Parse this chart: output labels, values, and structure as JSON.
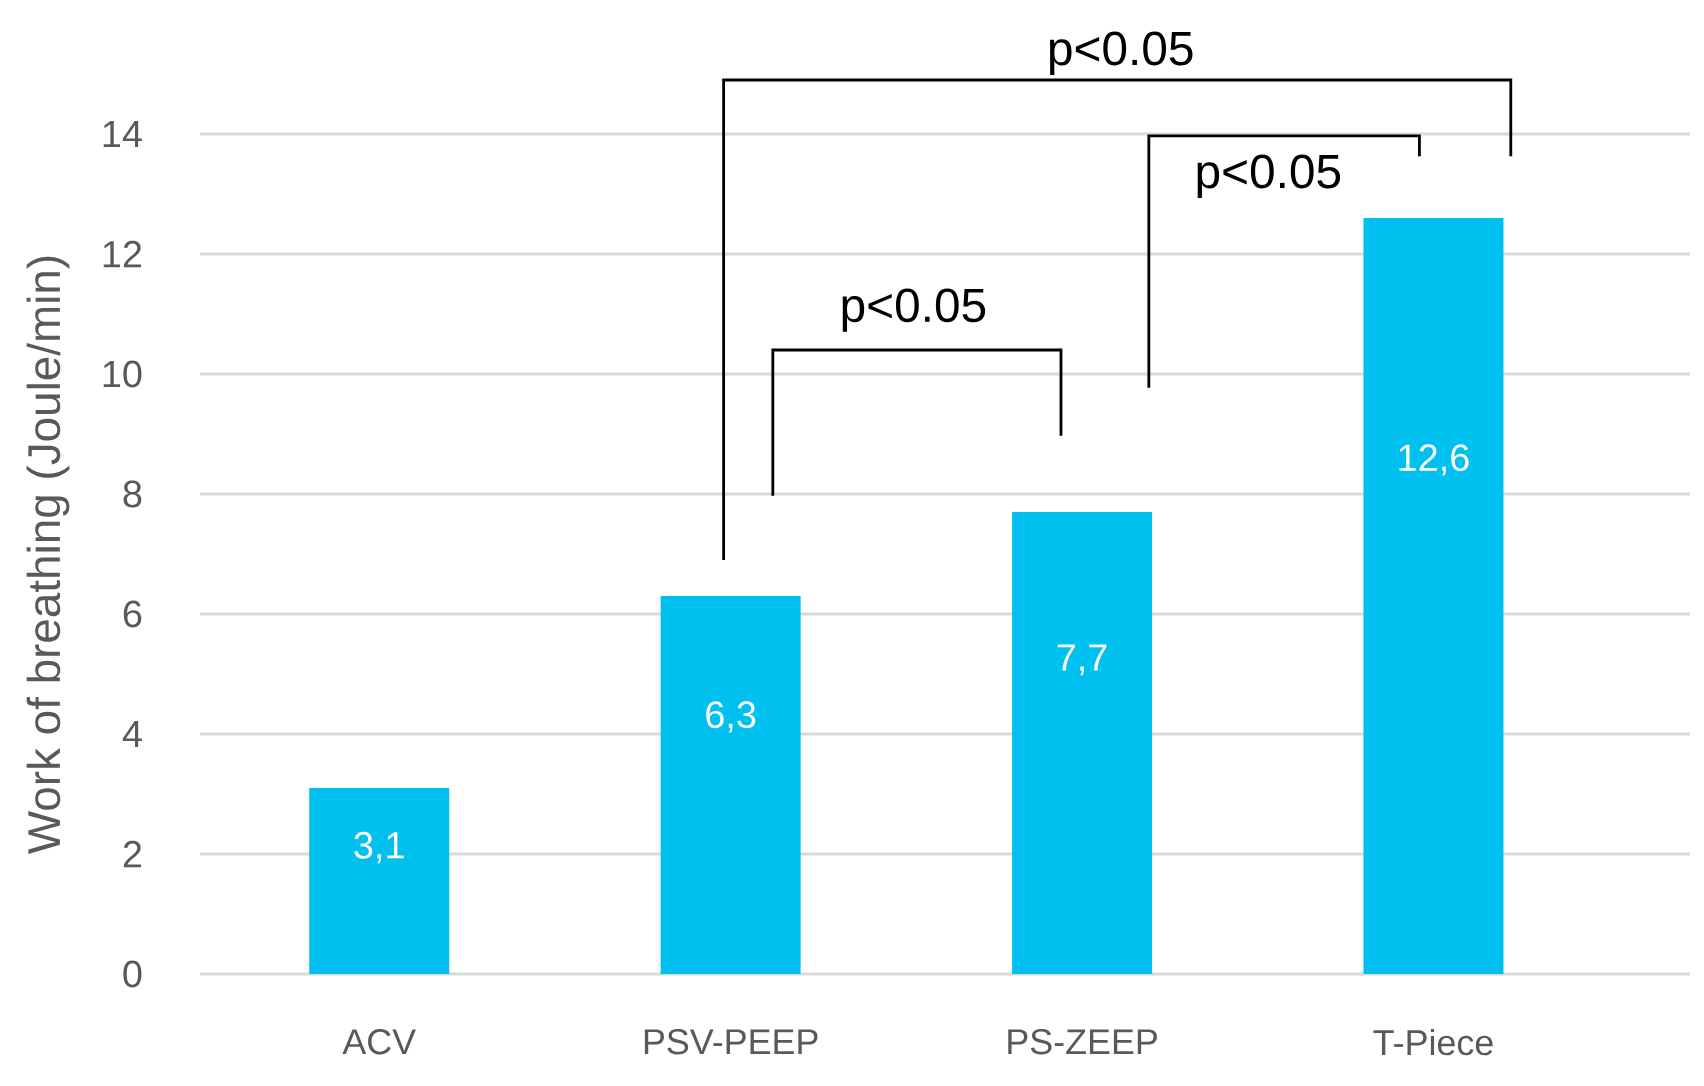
{
  "chart_data": {
    "type": "bar",
    "ylabel": "Work of breathing (Joule/min)",
    "categories": [
      "ACV",
      "PSV-PEEP",
      "PS-ZEEP",
      "T-Piece"
    ],
    "values": [
      3.1,
      6.3,
      7.7,
      12.6
    ],
    "value_labels": [
      "3,1",
      "6,3",
      "7,7",
      "12,6"
    ],
    "color": "#00c0ef",
    "ylim": [
      0,
      14
    ],
    "yticks": [
      0,
      2,
      4,
      6,
      8,
      10,
      12,
      14
    ],
    "grid": "y",
    "annotations": [
      "p<0.05",
      "p<0.05",
      "p<0.05"
    ]
  }
}
